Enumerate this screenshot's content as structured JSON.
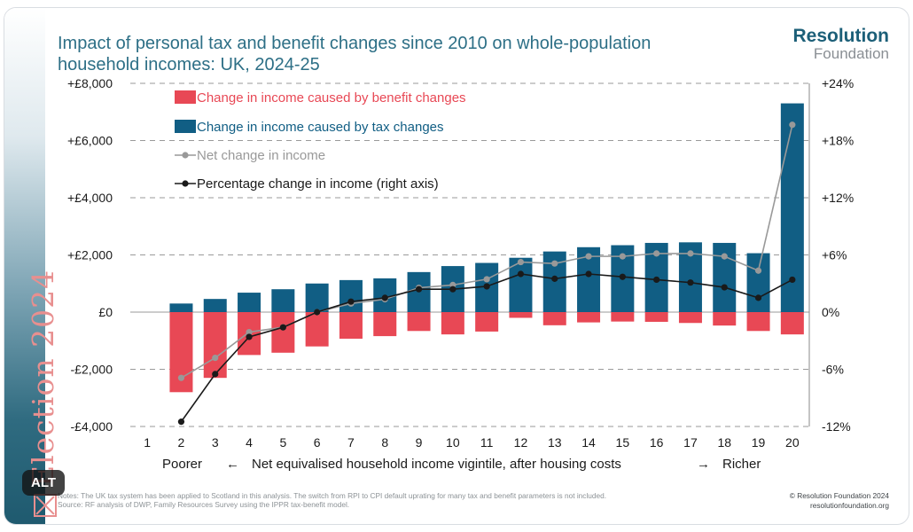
{
  "sidebar": {
    "text": "Election 2024"
  },
  "title": "Impact of personal tax and benefit changes since 2010 on whole-population household incomes: UK, 2024-25",
  "logo": {
    "line1": "Resolution",
    "line2": "Foundation"
  },
  "notes": "Notes: The UK tax system has been applied to Scotland in this analysis. The switch from RPI to CPI default uprating for many tax and benefit parameters is not included.",
  "source": "Source: RF analysis of DWP, Family Resources Survey using the IPPR tax-benefit model.",
  "copyright": "© Resolution Foundation 2024",
  "website": "resolutionfoundation.org",
  "alt_badge": "ALT",
  "colors": {
    "benefit": "#e84855",
    "tax": "#115e84",
    "net": "#999999",
    "pct": "#1a1a1a",
    "title": "#2d6f86"
  },
  "chart_data": {
    "type": "bar",
    "categories": [
      "1",
      "2",
      "3",
      "4",
      "5",
      "6",
      "7",
      "8",
      "9",
      "10",
      "11",
      "12",
      "13",
      "14",
      "15",
      "16",
      "17",
      "18",
      "19",
      "20"
    ],
    "xlabel": {
      "left": "Poorer",
      "left_arrow": "←",
      "middle": "Net equivalised household income vigintile, after housing costs",
      "right_arrow": "→",
      "right": "Richer"
    },
    "y_left": {
      "min": -4000,
      "max": 8000,
      "ticks": [
        8000,
        6000,
        4000,
        2000,
        0,
        -2000,
        -4000
      ],
      "tick_labels": [
        "+£8,000",
        "+£6,000",
        "+£4,000",
        "+£2,000",
        "£0",
        "-£2,000",
        "-£4,000"
      ]
    },
    "y_right": {
      "min": -12,
      "max": 24,
      "ticks": [
        24,
        18,
        12,
        6,
        0,
        -6,
        -12
      ],
      "tick_labels": [
        "+24%",
        "+18%",
        "+12%",
        "+6%",
        "0%",
        "-6%",
        "-12%"
      ]
    },
    "grid": true,
    "legend": [
      {
        "label": "Change in income caused by benefit changes",
        "type": "bar",
        "series": "benefit"
      },
      {
        "label": "Change in income caused by tax changes",
        "type": "bar",
        "series": "tax"
      },
      {
        "label": "Net change in income",
        "type": "line",
        "series": "net"
      },
      {
        "label": "Percentage change in income (right axis)",
        "type": "line",
        "series": "pct"
      }
    ],
    "series": [
      {
        "name": "Change in income caused by benefit changes",
        "key": "benefit",
        "axis": "left",
        "values": [
          null,
          -2800,
          -2300,
          -1500,
          -1420,
          -1200,
          -930,
          -840,
          -660,
          -780,
          -680,
          -200,
          -460,
          -360,
          -330,
          -340,
          -380,
          -470,
          -660,
          -780
        ]
      },
      {
        "name": "Change in income caused by tax changes",
        "key": "tax",
        "axis": "left",
        "values": [
          null,
          300,
          460,
          680,
          800,
          1000,
          1120,
          1180,
          1400,
          1610,
          1720,
          1900,
          2120,
          2270,
          2340,
          2420,
          2440,
          2420,
          2060,
          7300
        ]
      },
      {
        "name": "Net change in income",
        "key": "net",
        "axis": "left",
        "values": [
          null,
          -2300,
          -1600,
          -700,
          -530,
          0,
          300,
          450,
          850,
          950,
          1150,
          1750,
          1700,
          1950,
          1950,
          2050,
          2050,
          1950,
          1450,
          6550
        ]
      },
      {
        "name": "Percentage change in income (right axis)",
        "key": "pct",
        "axis": "right",
        "values": [
          null,
          -11.5,
          -6.5,
          -2.6,
          -1.6,
          0,
          1.1,
          1.5,
          2.4,
          2.4,
          2.7,
          4.0,
          3.5,
          4.0,
          3.7,
          3.4,
          3.1,
          2.6,
          1.5,
          3.4
        ]
      }
    ]
  }
}
